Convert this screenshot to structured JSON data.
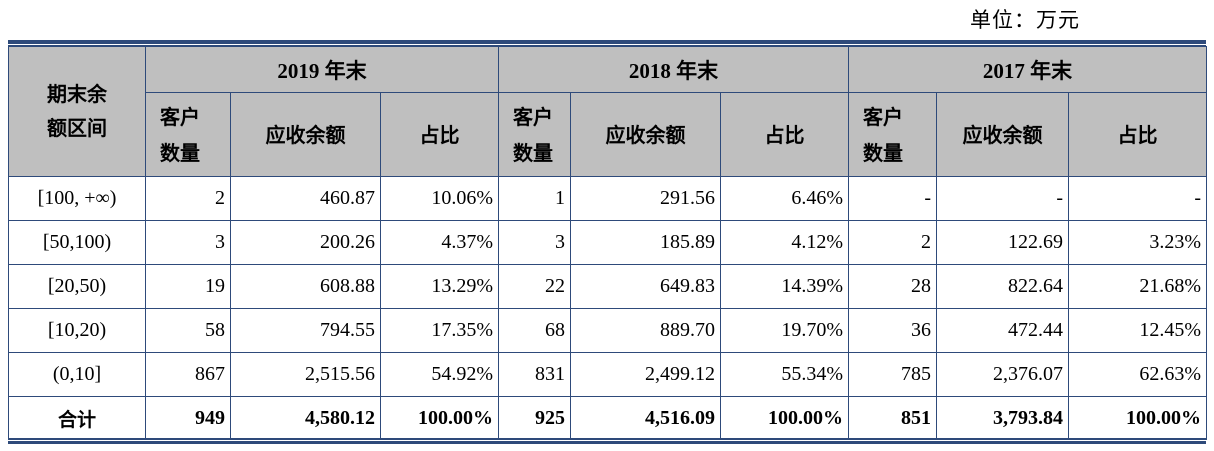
{
  "unit_label": "单位：万元",
  "header": {
    "first_col": "期末余额区间",
    "years": [
      "2019 年末",
      "2018 年末",
      "2017 年末"
    ],
    "sub": {
      "count": "客户数量",
      "amount": "应收余额",
      "ratio": "占比"
    }
  },
  "rows": [
    {
      "range": "[100, +∞)",
      "cells": [
        "2",
        "460.87",
        "10.06%",
        "1",
        "291.56",
        "6.46%",
        "-",
        "-",
        "-"
      ]
    },
    {
      "range": "[50,100)",
      "cells": [
        "3",
        "200.26",
        "4.37%",
        "3",
        "185.89",
        "4.12%",
        "2",
        "122.69",
        "3.23%"
      ]
    },
    {
      "range": "[20,50)",
      "cells": [
        "19",
        "608.88",
        "13.29%",
        "22",
        "649.83",
        "14.39%",
        "28",
        "822.64",
        "21.68%"
      ]
    },
    {
      "range": "[10,20)",
      "cells": [
        "58",
        "794.55",
        "17.35%",
        "68",
        "889.70",
        "19.70%",
        "36",
        "472.44",
        "12.45%"
      ]
    },
    {
      "range": "(0,10]",
      "cells": [
        "867",
        "2,515.56",
        "54.92%",
        "831",
        "2,499.12",
        "55.34%",
        "785",
        "2,376.07",
        "62.63%"
      ]
    }
  ],
  "total": {
    "range": "合计",
    "cells": [
      "949",
      "4,580.12",
      "100.00%",
      "925",
      "4,516.09",
      "100.00%",
      "851",
      "3,793.84",
      "100.00%"
    ]
  }
}
